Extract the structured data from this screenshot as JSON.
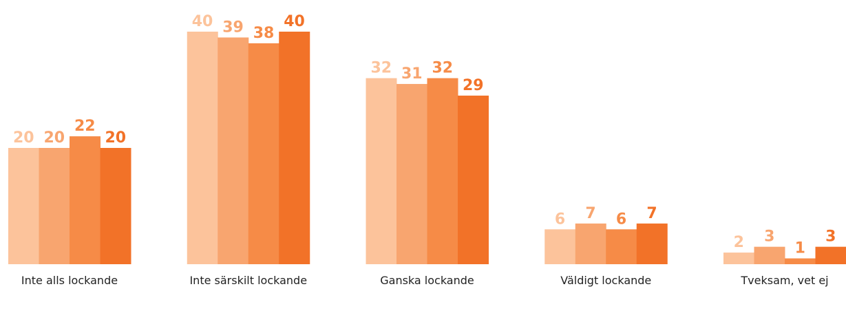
{
  "chart_data": {
    "type": "bar",
    "categories": [
      "Inte alls lockande",
      "Inte särskilt lockande",
      "Ganska lockande",
      "Väldigt lockande",
      "Tveksam, vet ej"
    ],
    "series": [
      {
        "color": "#fcc39b",
        "values": [
          20,
          40,
          32,
          6,
          2
        ]
      },
      {
        "color": "#f8a56f",
        "values": [
          20,
          39,
          31,
          7,
          3
        ]
      },
      {
        "color": "#f68b47",
        "values": [
          22,
          38,
          32,
          6,
          1
        ]
      },
      {
        "color": "#f27228",
        "values": [
          20,
          40,
          29,
          7,
          3
        ]
      }
    ],
    "ylim": [
      0,
      40
    ]
  }
}
